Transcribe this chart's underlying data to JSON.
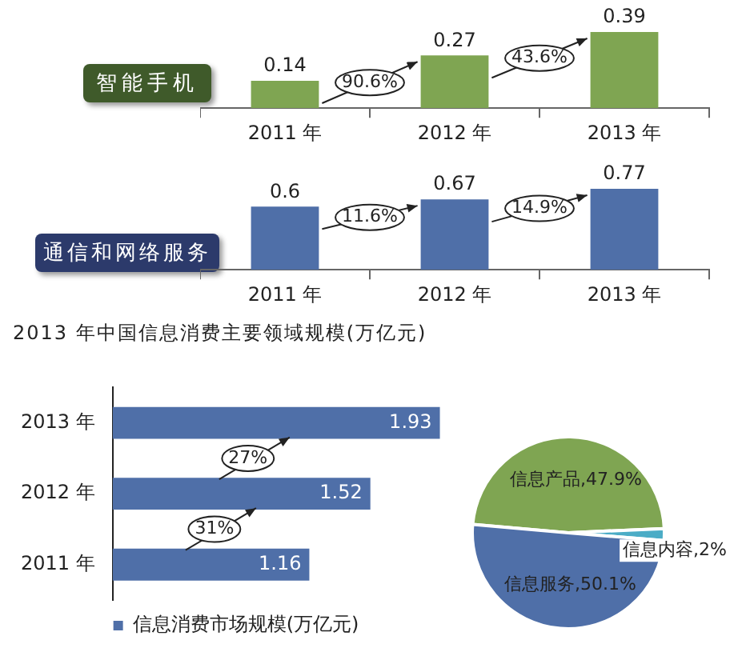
{
  "chart_data": [
    {
      "type": "bar",
      "title": "智能手机",
      "categories": [
        "2011 年",
        "2012 年",
        "2013 年"
      ],
      "values": [
        0.14,
        0.27,
        0.39
      ],
      "color": "#7fa552",
      "data_labels": true,
      "annotations": [
        "90.6%",
        "43.6%"
      ]
    },
    {
      "type": "bar",
      "title": "通信和网络服务",
      "categories": [
        "2011 年",
        "2012 年",
        "2013 年"
      ],
      "values": [
        0.6,
        0.67,
        0.77
      ],
      "color": "#4f6fa8",
      "data_labels": true,
      "annotations": [
        "11.6%",
        "14.9%"
      ]
    },
    {
      "type": "bar",
      "orientation": "horizontal",
      "title": "2013 年中国信息消费主要领域规模(万亿元)",
      "categories": [
        "2013 年",
        "2012 年",
        "2011 年"
      ],
      "series": [
        {
          "name": "信息消费市场规模(万亿元)",
          "color": "#4f6fa8",
          "values": [
            1.93,
            1.52,
            1.16
          ]
        }
      ],
      "data_labels": true,
      "legend": "bottom",
      "annotations": [
        "27%",
        "31%"
      ]
    },
    {
      "type": "pie",
      "categories": [
        "信息产品",
        "信息内容",
        "信息服务"
      ],
      "values": [
        47.9,
        2,
        50.1
      ],
      "colors": [
        "#7fa552",
        "#4bacc6",
        "#4f6fa8"
      ],
      "value_labels": [
        "47.9%",
        "2%",
        "50.1%"
      ]
    }
  ]
}
